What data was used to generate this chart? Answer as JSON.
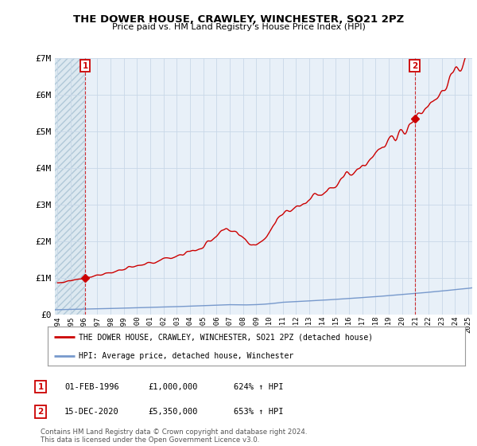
{
  "title": "THE DOWER HOUSE, CRAWLEY, WINCHESTER, SO21 2PZ",
  "subtitle": "Price paid vs. HM Land Registry's House Price Index (HPI)",
  "legend_line1": "THE DOWER HOUSE, CRAWLEY, WINCHESTER, SO21 2PZ (detached house)",
  "legend_line2": "HPI: Average price, detached house, Winchester",
  "annotation1_label": "1",
  "annotation1_date": "01-FEB-1996",
  "annotation1_price": "£1,000,000",
  "annotation1_hpi": "624% ↑ HPI",
  "annotation2_label": "2",
  "annotation2_date": "15-DEC-2020",
  "annotation2_price": "£5,350,000",
  "annotation2_hpi": "653% ↑ HPI",
  "footnote": "Contains HM Land Registry data © Crown copyright and database right 2024.\nThis data is licensed under the Open Government Licence v3.0.",
  "property_color": "#cc0000",
  "hpi_color": "#7799cc",
  "point1_x": 1996.08,
  "point1_y": 1000000,
  "point2_x": 2020.96,
  "point2_y": 5350000,
  "ylim": [
    0,
    7000000
  ],
  "xlim_start": 1993.8,
  "xlim_end": 2025.3,
  "yticks": [
    0,
    1000000,
    2000000,
    3000000,
    4000000,
    5000000,
    6000000,
    7000000
  ],
  "ytick_labels": [
    "£0",
    "£1M",
    "£2M",
    "£3M",
    "£4M",
    "£5M",
    "£6M",
    "£7M"
  ],
  "xtick_years": [
    1994,
    1995,
    1996,
    1997,
    1998,
    1999,
    2000,
    2001,
    2002,
    2003,
    2004,
    2005,
    2006,
    2007,
    2008,
    2009,
    2010,
    2011,
    2012,
    2013,
    2014,
    2015,
    2016,
    2017,
    2018,
    2019,
    2020,
    2021,
    2022,
    2023,
    2024,
    2025
  ],
  "background_color": "#ffffff",
  "grid_color": "#c8d8e8",
  "chart_bg": "#e8f0f8"
}
